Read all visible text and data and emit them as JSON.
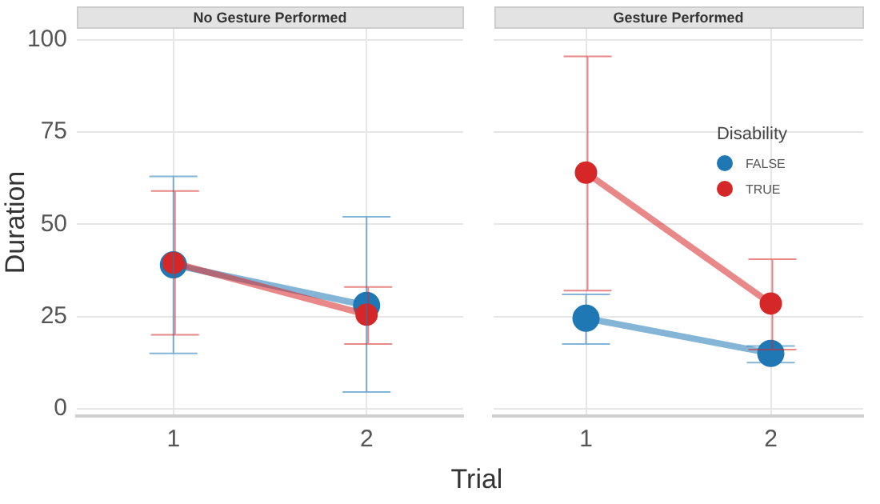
{
  "chart_data": [
    {
      "type": "line",
      "title": "No Gesture Performed",
      "xlabel": "Trial",
      "ylabel": "Duration",
      "categories": [
        "1",
        "2"
      ],
      "ylim": [
        -2,
        103
      ],
      "yticks": [
        0,
        25,
        50,
        75,
        100
      ],
      "grid": true,
      "legend": false,
      "marker": "circle",
      "line_style": "solid",
      "series": [
        {
          "color": "#1f78b4",
          "values": [
            39,
            28
          ],
          "errors": [
            [
              15,
              63
            ],
            [
              4.5,
              52
            ]
          ]
        },
        {
          "color": "#d62728",
          "values": [
            39.5,
            25.5
          ],
          "errors": [
            [
              20,
              59
            ],
            [
              17.5,
              33
            ]
          ]
        }
      ]
    },
    {
      "type": "line",
      "title": "Gesture Performed",
      "legend_title": "Disability",
      "categories": [
        "1",
        "2"
      ],
      "ylim": [
        -2,
        103
      ],
      "yticks": [
        0,
        25,
        50,
        75,
        100
      ],
      "grid": true,
      "legend": "right",
      "tick_labels": "x",
      "marker": "circle",
      "line_style": "solid",
      "series": [
        {
          "name": "FALSE",
          "color": "#1f78b4",
          "values": [
            24.5,
            15
          ],
          "errors": [
            [
              17.5,
              31
            ],
            [
              12.5,
              17
            ]
          ]
        },
        {
          "name": "TRUE",
          "color": "#d62728",
          "values": [
            64,
            28.5
          ],
          "errors": [
            [
              32,
              95.5
            ],
            [
              16,
              40.5
            ]
          ]
        }
      ]
    }
  ]
}
